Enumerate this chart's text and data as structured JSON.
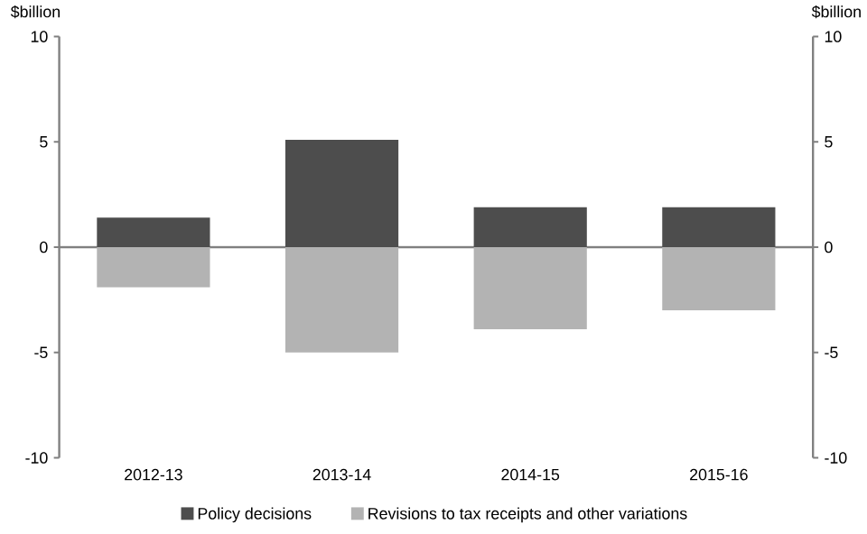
{
  "chart_data": {
    "type": "bar",
    "stacked": true,
    "categories": [
      "2012-13",
      "2013-14",
      "2014-15",
      "2015-16"
    ],
    "series": [
      {
        "name": "Policy decisions",
        "color": "#4d4d4d",
        "values": [
          1.4,
          5.1,
          1.9,
          1.9
        ]
      },
      {
        "name": "Revisions to tax receipts and other variations",
        "color": "#b3b3b3",
        "values": [
          -1.9,
          -5.0,
          -3.9,
          -3.0
        ]
      }
    ],
    "ylabel": "$billion",
    "y2label": "$billion",
    "ylim": [
      -10,
      10
    ],
    "yticks": [
      -10,
      -5,
      0,
      5,
      10
    ],
    "y2lim": [
      -10,
      10
    ],
    "y2ticks": [
      -10,
      -5,
      0,
      5,
      10
    ],
    "legend": "bottom"
  }
}
